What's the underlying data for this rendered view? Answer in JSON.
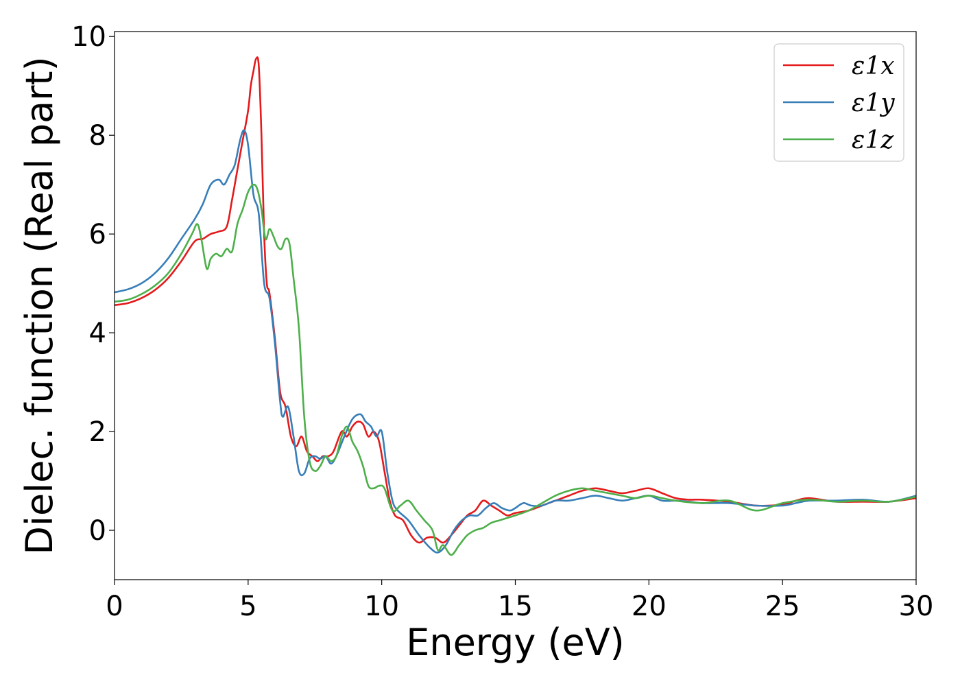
{
  "chart_data": {
    "type": "line",
    "title": "",
    "xlabel": "Energy (eV)",
    "ylabel": "Dielec. function (Real part)",
    "xlim": [
      0,
      30
    ],
    "ylim": [
      -1,
      10.1
    ],
    "xticks": [
      0,
      5,
      10,
      15,
      20,
      25,
      30
    ],
    "yticks": [
      0,
      2,
      4,
      6,
      8,
      10
    ],
    "xtick_labels": [
      "0",
      "5",
      "10",
      "15",
      "20",
      "25",
      "30"
    ],
    "ytick_labels": [
      "0",
      "2",
      "4",
      "6",
      "8",
      "10"
    ],
    "grid": false,
    "legend_position": "top-right",
    "series": [
      {
        "name": "ε1x",
        "color": "#e41a1c",
        "x": [
          0,
          0.5,
          1,
          1.5,
          2,
          2.5,
          3,
          3.3,
          3.6,
          3.9,
          4.2,
          4.4,
          4.6,
          4.8,
          5.0,
          5.1,
          5.2,
          5.3,
          5.4,
          5.5,
          5.6,
          5.7,
          5.8,
          6.0,
          6.2,
          6.4,
          6.6,
          6.8,
          7.0,
          7.2,
          7.4,
          7.6,
          7.8,
          8.0,
          8.2,
          8.5,
          8.7,
          8.9,
          9.1,
          9.3,
          9.5,
          9.7,
          9.9,
          10.1,
          10.3,
          10.5,
          10.8,
          11.1,
          11.4,
          11.7,
          12.0,
          12.3,
          12.6,
          12.9,
          13.2,
          13.5,
          13.8,
          14.1,
          14.4,
          14.7,
          15.0,
          15.5,
          16.0,
          16.5,
          17.0,
          17.5,
          18.0,
          18.5,
          19.0,
          19.5,
          20.0,
          20.5,
          21.0,
          21.5,
          22.0,
          23.0,
          24.0,
          25.0,
          25.5,
          26.0,
          27.0,
          28.0,
          29.0,
          30.0
        ],
        "y": [
          4.56,
          4.6,
          4.7,
          4.86,
          5.1,
          5.45,
          5.85,
          5.9,
          6.0,
          6.05,
          6.15,
          6.7,
          7.3,
          7.9,
          8.5,
          9.0,
          9.3,
          9.55,
          9.4,
          8.0,
          6.0,
          5.0,
          4.8,
          3.9,
          2.8,
          2.5,
          1.9,
          1.7,
          1.9,
          1.6,
          1.5,
          1.4,
          1.5,
          1.5,
          1.6,
          2.0,
          1.9,
          2.1,
          2.2,
          2.15,
          1.9,
          2.0,
          1.8,
          1.2,
          0.6,
          0.3,
          0.2,
          -0.1,
          -0.25,
          -0.15,
          -0.15,
          -0.25,
          -0.1,
          0.1,
          0.3,
          0.4,
          0.6,
          0.5,
          0.4,
          0.3,
          0.35,
          0.4,
          0.5,
          0.6,
          0.7,
          0.8,
          0.85,
          0.8,
          0.75,
          0.8,
          0.85,
          0.75,
          0.65,
          0.62,
          0.62,
          0.58,
          0.5,
          0.52,
          0.6,
          0.65,
          0.58,
          0.58,
          0.58,
          0.65
        ]
      },
      {
        "name": "ε1y",
        "color": "#377eb8",
        "x": [
          0,
          0.5,
          1,
          1.5,
          2,
          2.5,
          3,
          3.3,
          3.6,
          3.9,
          4.1,
          4.3,
          4.5,
          4.7,
          4.85,
          5.0,
          5.2,
          5.4,
          5.6,
          5.8,
          6.0,
          6.2,
          6.3,
          6.5,
          6.7,
          6.9,
          7.1,
          7.3,
          7.5,
          7.7,
          7.9,
          8.1,
          8.3,
          8.6,
          8.9,
          9.2,
          9.4,
          9.6,
          9.8,
          10.0,
          10.2,
          10.4,
          10.6,
          11.0,
          11.4,
          11.8,
          12.1,
          12.4,
          12.7,
          13.0,
          13.3,
          13.6,
          13.9,
          14.2,
          14.5,
          14.8,
          15.0,
          15.3,
          15.6,
          16.0,
          16.5,
          17.0,
          17.5,
          18.0,
          18.5,
          19.0,
          19.5,
          20.0,
          20.5,
          21.0,
          21.5,
          22.0,
          23.0,
          24.0,
          25.0,
          25.5,
          26.0,
          27.0,
          28.0,
          29.0,
          30.0
        ],
        "y": [
          4.82,
          4.88,
          5.0,
          5.2,
          5.5,
          5.9,
          6.3,
          6.6,
          7.0,
          7.1,
          7.0,
          7.2,
          7.4,
          7.9,
          8.1,
          7.8,
          6.8,
          6.4,
          5.0,
          4.7,
          3.8,
          2.6,
          2.3,
          2.5,
          1.9,
          1.2,
          1.15,
          1.45,
          1.5,
          1.45,
          1.5,
          1.35,
          1.5,
          1.9,
          2.25,
          2.35,
          2.2,
          2.1,
          1.9,
          2.0,
          1.2,
          0.6,
          0.4,
          0.2,
          -0.1,
          -0.35,
          -0.45,
          -0.3,
          0.0,
          0.2,
          0.3,
          0.3,
          0.45,
          0.55,
          0.45,
          0.4,
          0.45,
          0.55,
          0.5,
          0.5,
          0.6,
          0.6,
          0.65,
          0.7,
          0.65,
          0.6,
          0.65,
          0.7,
          0.6,
          0.6,
          0.58,
          0.55,
          0.55,
          0.5,
          0.5,
          0.55,
          0.6,
          0.6,
          0.62,
          0.58,
          0.7
        ]
      },
      {
        "name": "ε1z",
        "color": "#4daf4a",
        "x": [
          0,
          0.5,
          1,
          1.5,
          2,
          2.5,
          2.9,
          3.1,
          3.25,
          3.45,
          3.6,
          3.8,
          4.0,
          4.2,
          4.4,
          4.6,
          4.8,
          5.0,
          5.2,
          5.35,
          5.5,
          5.65,
          5.8,
          5.95,
          6.1,
          6.25,
          6.4,
          6.55,
          6.7,
          6.9,
          7.1,
          7.3,
          7.5,
          7.7,
          7.9,
          8.1,
          8.3,
          8.5,
          8.7,
          8.9,
          9.1,
          9.3,
          9.5,
          9.7,
          9.9,
          10.1,
          10.4,
          10.7,
          11.0,
          11.3,
          11.6,
          11.9,
          12.1,
          12.3,
          12.6,
          12.9,
          13.2,
          13.5,
          13.8,
          14.1,
          14.4,
          14.7,
          15.0,
          15.5,
          16.0,
          16.5,
          17.0,
          17.5,
          18.0,
          18.5,
          19.0,
          19.5,
          20.0,
          20.5,
          21.0,
          22.0,
          23.0,
          24.0,
          25.0,
          26.0,
          27.0,
          28.0,
          29.0,
          30.0
        ],
        "y": [
          4.63,
          4.67,
          4.78,
          4.95,
          5.2,
          5.6,
          6.0,
          6.2,
          5.9,
          5.3,
          5.5,
          5.6,
          5.55,
          5.7,
          5.65,
          6.2,
          6.5,
          6.85,
          7.0,
          6.9,
          6.5,
          5.9,
          6.1,
          5.95,
          5.75,
          5.7,
          5.9,
          5.8,
          5.1,
          4.1,
          2.3,
          1.4,
          1.2,
          1.3,
          1.5,
          1.4,
          1.5,
          1.9,
          2.1,
          1.8,
          1.6,
          1.3,
          0.9,
          0.85,
          0.9,
          0.85,
          0.4,
          0.5,
          0.6,
          0.4,
          0.2,
          0.0,
          -0.4,
          -0.3,
          -0.5,
          -0.3,
          -0.1,
          0.0,
          0.05,
          0.15,
          0.2,
          0.25,
          0.3,
          0.4,
          0.55,
          0.7,
          0.8,
          0.85,
          0.8,
          0.75,
          0.7,
          0.65,
          0.7,
          0.65,
          0.6,
          0.55,
          0.6,
          0.4,
          0.55,
          0.62,
          0.58,
          0.6,
          0.58,
          0.68
        ]
      }
    ]
  }
}
